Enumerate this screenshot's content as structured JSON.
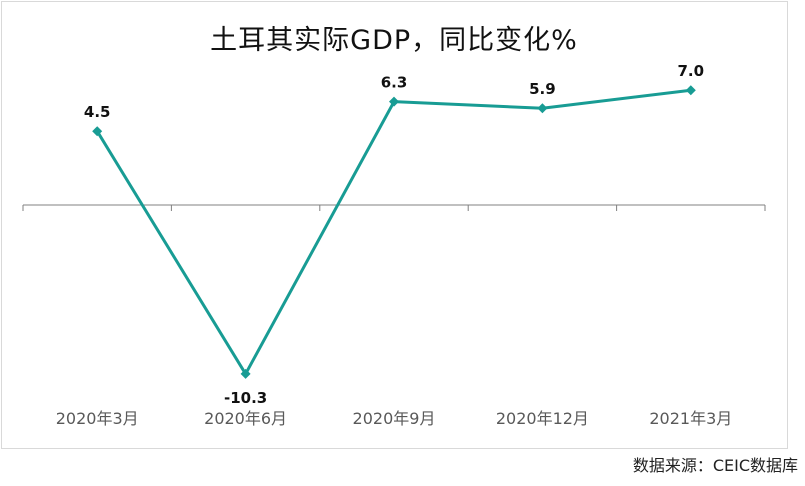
{
  "title": "土耳其实际GDP，同比变化%",
  "source": "数据来源：CEIC数据库",
  "colors": {
    "line": "#189c94",
    "axis": "#808080",
    "axis_text": "#595959"
  },
  "chart_data": {
    "type": "line",
    "title": "土耳其实际GDP，同比变化%",
    "categories": [
      "2020年3月",
      "2020年6月",
      "2020年9月",
      "2020年12月",
      "2021年3月"
    ],
    "series": [
      {
        "values": [
          4.5,
          -10.3,
          6.3,
          5.9,
          7.0
        ],
        "labels": [
          "4.5",
          "-10.3",
          "6.3",
          "5.9",
          "7.0"
        ]
      }
    ],
    "ylim": [
      -12,
      12
    ],
    "grid": false,
    "marker": "diamond"
  }
}
